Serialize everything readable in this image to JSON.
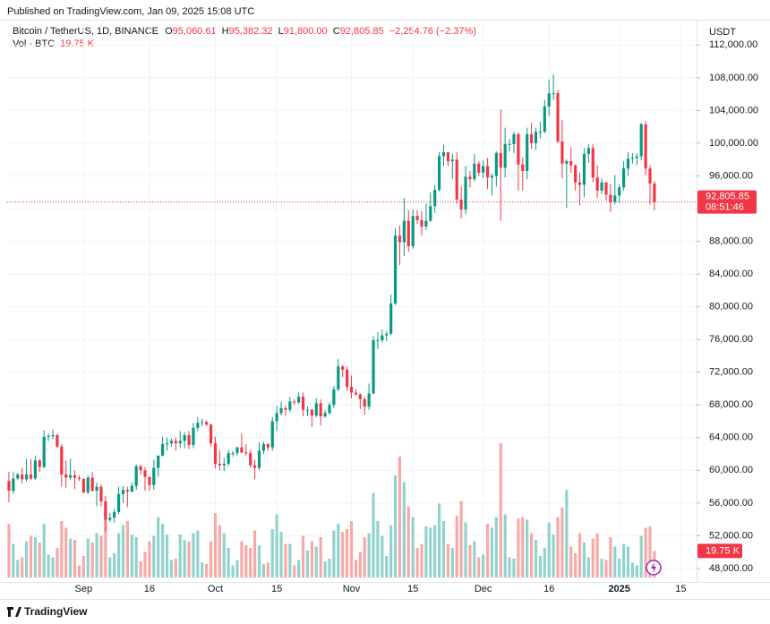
{
  "published": "Published on TradingView.com, Jan 09, 2025 15:08 UTC",
  "brand": "TradingView",
  "chart_data": {
    "type": "candlestick",
    "symbol": "Bitcoin / TetherUS, 1D, BINANCE",
    "ohlc_legend": [
      [
        "O",
        "95,060.61"
      ],
      [
        "H",
        "95,382.32"
      ],
      [
        "L",
        "91,800.00"
      ],
      [
        "C",
        "92,805.85"
      ]
    ],
    "change": "−2,254.76 (−2.37%)",
    "volume_title": "Vol · BTC",
    "volume_label": "19.75 K",
    "currency": "USDT",
    "last_price_label": "92,805.85",
    "countdown": "08:51:46",
    "up_color": "#089981",
    "down_color": "#f23645",
    "up_volume_color": "#92d2cc",
    "down_volume_color": "#f7a9a7",
    "grid": true,
    "xlim": [
      -0.4,
      156.6
    ],
    "xticks": [
      {
        "value": 17,
        "label": "Sep"
      },
      {
        "value": 32,
        "label": "16"
      },
      {
        "value": 47,
        "label": "Oct"
      },
      {
        "value": 61,
        "label": "15"
      },
      {
        "value": 78,
        "label": "Nov"
      },
      {
        "value": 92,
        "label": "15"
      },
      {
        "value": 108,
        "label": "Dec"
      },
      {
        "value": 123,
        "label": "16"
      },
      {
        "value": 139,
        "label": "2025"
      },
      {
        "value": 153,
        "label": "15"
      }
    ],
    "ylim": [
      46900,
      115100
    ],
    "yticks": [
      {
        "value": 48000,
        "label": "48,000.00"
      },
      {
        "value": 52000,
        "label": "52,000.00"
      },
      {
        "value": 56000,
        "label": "56,000.00"
      },
      {
        "value": 60000,
        "label": "60,000.00"
      },
      {
        "value": 64000,
        "label": "64,000.00"
      },
      {
        "value": 68000,
        "label": "68,000.00"
      },
      {
        "value": 72000,
        "label": "72,000.00"
      },
      {
        "value": 76000,
        "label": "76,000.00"
      },
      {
        "value": 80000,
        "label": "80,000.00"
      },
      {
        "value": 84000,
        "label": "84,000.00"
      },
      {
        "value": 88000,
        "label": "88,000.00"
      },
      {
        "value": 92000,
        "label": "92,000.00"
      },
      {
        "value": 96000,
        "label": "96,000.00"
      },
      {
        "value": 100000,
        "label": "100,000.00"
      },
      {
        "value": 104000,
        "label": "104,000.00"
      },
      {
        "value": 108000,
        "label": "108,000.00"
      },
      {
        "value": 112000,
        "label": "112,000.00"
      }
    ],
    "x": [
      0,
      1,
      2,
      3,
      4,
      5,
      6,
      7,
      8,
      9,
      10,
      11,
      12,
      13,
      14,
      15,
      16,
      17,
      18,
      19,
      20,
      21,
      22,
      23,
      24,
      25,
      26,
      27,
      28,
      29,
      30,
      31,
      32,
      33,
      34,
      35,
      36,
      37,
      38,
      39,
      40,
      41,
      42,
      43,
      44,
      45,
      46,
      47,
      48,
      49,
      50,
      51,
      52,
      53,
      54,
      55,
      56,
      57,
      58,
      59,
      60,
      61,
      62,
      63,
      64,
      65,
      66,
      67,
      68,
      69,
      70,
      71,
      72,
      73,
      74,
      75,
      76,
      77,
      78,
      79,
      80,
      81,
      82,
      83,
      84,
      85,
      86,
      87,
      88,
      89,
      90,
      91,
      92,
      93,
      94,
      95,
      96,
      97,
      98,
      99,
      100,
      101,
      102,
      103,
      104,
      105,
      106,
      107,
      108,
      109,
      110,
      111,
      112,
      113,
      114,
      115,
      116,
      117,
      118,
      119,
      120,
      121,
      122,
      123,
      124,
      125,
      126,
      127,
      128,
      129,
      130,
      131,
      132,
      133,
      134,
      135,
      136,
      137,
      138,
      139,
      140,
      141,
      142,
      143,
      144,
      145,
      146,
      147
    ],
    "candles": [
      [
        58700,
        59800,
        56100,
        57500,
        40000
      ],
      [
        57500,
        59800,
        57100,
        59000,
        25000
      ],
      [
        59000,
        59700,
        58800,
        59500,
        13000
      ],
      [
        59500,
        60300,
        58400,
        58900,
        15000
      ],
      [
        58900,
        61400,
        58600,
        59500,
        27000
      ],
      [
        59500,
        61400,
        58800,
        59000,
        31000
      ],
      [
        59000,
        61800,
        58800,
        61200,
        30000
      ],
      [
        61200,
        61400,
        59800,
        60400,
        26000
      ],
      [
        60400,
        64900,
        60300,
        64100,
        40000
      ],
      [
        64100,
        64500,
        63600,
        64200,
        17000
      ],
      [
        64200,
        65000,
        63800,
        64300,
        15000
      ],
      [
        64300,
        64500,
        62700,
        62900,
        22000
      ],
      [
        62900,
        63200,
        58000,
        59500,
        42000
      ],
      [
        59500,
        61200,
        57900,
        59100,
        37000
      ],
      [
        59100,
        61400,
        58800,
        59400,
        29000
      ],
      [
        59400,
        60000,
        57700,
        59100,
        28000
      ],
      [
        59100,
        59400,
        58700,
        58970,
        9000
      ],
      [
        58970,
        59000,
        57200,
        57300,
        16000
      ],
      [
        57300,
        59400,
        57100,
        59100,
        29000
      ],
      [
        59100,
        59800,
        57400,
        57500,
        26000
      ],
      [
        57500,
        58500,
        55600,
        58000,
        33000
      ],
      [
        58000,
        58300,
        55600,
        56200,
        31000
      ],
      [
        56200,
        56900,
        52500,
        53950,
        49000
      ],
      [
        53950,
        54800,
        53700,
        54200,
        15000
      ],
      [
        54200,
        55300,
        53600,
        54900,
        18000
      ],
      [
        54900,
        58000,
        54600,
        57100,
        33000
      ],
      [
        57100,
        58100,
        56000,
        57600,
        39000
      ],
      [
        57600,
        58000,
        55500,
        57400,
        42000
      ],
      [
        57400,
        58500,
        57300,
        58100,
        32000
      ],
      [
        58100,
        60700,
        57600,
        60500,
        30000
      ],
      [
        60500,
        60700,
        59500,
        60000,
        12000
      ],
      [
        60000,
        60400,
        57500,
        59200,
        19000
      ],
      [
        59200,
        59200,
        57500,
        58200,
        27000
      ],
      [
        58200,
        61300,
        57600,
        60300,
        31000
      ],
      [
        60300,
        61800,
        59200,
        61800,
        45000
      ],
      [
        61800,
        64100,
        61700,
        63200,
        40000
      ],
      [
        63200,
        64000,
        62400,
        63300,
        32000
      ],
      [
        63300,
        63900,
        62900,
        63600,
        13000
      ],
      [
        63600,
        64000,
        62400,
        63300,
        14000
      ],
      [
        63300,
        64800,
        62700,
        63600,
        32000
      ],
      [
        63600,
        64700,
        62700,
        64300,
        28000
      ],
      [
        64300,
        64800,
        62600,
        63100,
        27000
      ],
      [
        63100,
        65800,
        62700,
        65200,
        33000
      ],
      [
        65200,
        66500,
        64800,
        65800,
        35000
      ],
      [
        65800,
        66300,
        65400,
        65900,
        11000
      ],
      [
        65900,
        66100,
        65400,
        65600,
        10000
      ],
      [
        65600,
        65700,
        62900,
        63300,
        27000
      ],
      [
        63300,
        64100,
        60200,
        60800,
        48000
      ],
      [
        60800,
        62400,
        60000,
        60600,
        39000
      ],
      [
        60600,
        61500,
        59900,
        60800,
        33000
      ],
      [
        60800,
        62500,
        60500,
        62100,
        22000
      ],
      [
        62100,
        62400,
        61700,
        62100,
        9000
      ],
      [
        62100,
        62900,
        61800,
        62800,
        13000
      ],
      [
        62800,
        64500,
        62100,
        62200,
        27000
      ],
      [
        62200,
        63200,
        61800,
        62100,
        24000
      ],
      [
        62100,
        62500,
        60300,
        60600,
        22000
      ],
      [
        60600,
        61300,
        58900,
        60300,
        35000
      ],
      [
        60300,
        63400,
        60000,
        62400,
        24000
      ],
      [
        62400,
        63500,
        62000,
        63200,
        10000
      ],
      [
        63200,
        63300,
        62400,
        62800,
        11000
      ],
      [
        62800,
        66500,
        62400,
        66000,
        36000
      ],
      [
        66000,
        67900,
        64800,
        67000,
        47000
      ],
      [
        67000,
        68400,
        66700,
        67600,
        34000
      ],
      [
        67600,
        67900,
        66700,
        67400,
        25000
      ],
      [
        67400,
        69000,
        67100,
        68400,
        25000
      ],
      [
        68400,
        68700,
        68000,
        68300,
        9000
      ],
      [
        68300,
        69500,
        68100,
        69000,
        13000
      ],
      [
        69000,
        69500,
        66600,
        67400,
        31000
      ],
      [
        67400,
        67800,
        66600,
        67400,
        20000
      ],
      [
        67400,
        67500,
        65300,
        66700,
        27000
      ],
      [
        66700,
        68800,
        66500,
        68200,
        23000
      ],
      [
        68200,
        68700,
        65500,
        66600,
        30000
      ],
      [
        66600,
        67400,
        66400,
        67000,
        12000
      ],
      [
        67000,
        68300,
        66800,
        68000,
        14000
      ],
      [
        68000,
        70300,
        67600,
        69900,
        35000
      ],
      [
        69900,
        73600,
        69700,
        72700,
        40000
      ],
      [
        72700,
        72900,
        71400,
        72300,
        34000
      ],
      [
        72300,
        72700,
        69700,
        70200,
        36000
      ],
      [
        70200,
        71600,
        68800,
        69500,
        42000
      ],
      [
        69500,
        69900,
        69100,
        69300,
        13000
      ],
      [
        69300,
        69400,
        67500,
        68700,
        19000
      ],
      [
        68700,
        69000,
        66800,
        67800,
        30000
      ],
      [
        67800,
        70600,
        67400,
        69400,
        33000
      ],
      [
        69400,
        76400,
        69300,
        75900,
        63000
      ],
      [
        75900,
        76900,
        74800,
        75900,
        42000
      ],
      [
        75900,
        77200,
        75600,
        76500,
        31000
      ],
      [
        76500,
        77000,
        75800,
        76700,
        16000
      ],
      [
        76700,
        81500,
        76500,
        80400,
        39000
      ],
      [
        80400,
        89600,
        80200,
        88700,
        76000
      ],
      [
        88700,
        89900,
        85100,
        87900,
        90000
      ],
      [
        87900,
        93300,
        86200,
        90500,
        71000
      ],
      [
        90500,
        91800,
        86700,
        87400,
        53000
      ],
      [
        87400,
        91900,
        87100,
        91100,
        45000
      ],
      [
        91100,
        91800,
        90100,
        90600,
        22000
      ],
      [
        90600,
        91700,
        88700,
        89800,
        25000
      ],
      [
        89800,
        92600,
        89400,
        90500,
        38000
      ],
      [
        90500,
        94000,
        90400,
        92300,
        37000
      ],
      [
        92300,
        94900,
        91500,
        94300,
        39000
      ],
      [
        94300,
        98900,
        94100,
        98400,
        55000
      ],
      [
        98400,
        99800,
        97200,
        98900,
        42000
      ],
      [
        98900,
        98900,
        97200,
        97800,
        25000
      ],
      [
        97800,
        98700,
        95600,
        98000,
        22000
      ],
      [
        98000,
        98900,
        92600,
        93100,
        46000
      ],
      [
        93100,
        94700,
        90800,
        91900,
        57000
      ],
      [
        91900,
        97200,
        91300,
        95900,
        41000
      ],
      [
        95900,
        96600,
        94600,
        95600,
        24000
      ],
      [
        95600,
        98700,
        95300,
        97500,
        27000
      ],
      [
        97500,
        97800,
        96000,
        96400,
        15000
      ],
      [
        96400,
        97900,
        95700,
        97200,
        17000
      ],
      [
        97200,
        98200,
        94400,
        95800,
        40000
      ],
      [
        95800,
        96300,
        93600,
        96000,
        37000
      ],
      [
        96000,
        99000,
        94700,
        98800,
        45000
      ],
      [
        98800,
        104100,
        90500,
        97000,
        100000
      ],
      [
        97000,
        101900,
        95800,
        99900,
        47000
      ],
      [
        99900,
        100500,
        99000,
        99900,
        15000
      ],
      [
        99900,
        101400,
        98800,
        101100,
        14000
      ],
      [
        101100,
        101300,
        94200,
        97400,
        44000
      ],
      [
        97400,
        98300,
        94200,
        96600,
        45000
      ],
      [
        96600,
        101900,
        95600,
        101100,
        43000
      ],
      [
        101100,
        102500,
        99300,
        100000,
        33000
      ],
      [
        100000,
        101900,
        99200,
        101400,
        28000
      ],
      [
        101400,
        102600,
        100600,
        101400,
        16000
      ],
      [
        101400,
        105300,
        101200,
        104500,
        22000
      ],
      [
        104500,
        107800,
        103300,
        106100,
        41000
      ],
      [
        106100,
        108400,
        105300,
        106100,
        32000
      ],
      [
        106100,
        106500,
        100000,
        100200,
        45000
      ],
      [
        100200,
        102800,
        95700,
        97500,
        52000
      ],
      [
        97500,
        98000,
        92100,
        97800,
        65000
      ],
      [
        97800,
        99500,
        96400,
        97300,
        23000
      ],
      [
        97300,
        97400,
        94200,
        95200,
        18000
      ],
      [
        95200,
        96400,
        92400,
        94900,
        33000
      ],
      [
        94900,
        99400,
        93400,
        98700,
        26000
      ],
      [
        98700,
        99900,
        97600,
        99400,
        15000
      ],
      [
        99400,
        99900,
        95200,
        95800,
        29000
      ],
      [
        95800,
        97300,
        93300,
        94200,
        33000
      ],
      [
        94200,
        95700,
        93800,
        95200,
        14000
      ],
      [
        95200,
        95300,
        93000,
        93700,
        13000
      ],
      [
        93700,
        95000,
        91600,
        92800,
        30000
      ],
      [
        92800,
        96100,
        92500,
        93600,
        23000
      ],
      [
        93600,
        95000,
        92700,
        94600,
        14000
      ],
      [
        94600,
        97800,
        94200,
        96900,
        25000
      ],
      [
        96900,
        98900,
        96000,
        98100,
        23000
      ],
      [
        98100,
        98800,
        97500,
        98200,
        11000
      ],
      [
        98200,
        98800,
        97300,
        98400,
        9000
      ],
      [
        98400,
        102500,
        97900,
        102300,
        31000
      ],
      [
        102300,
        102700,
        96100,
        96900,
        37000
      ],
      [
        96900,
        97300,
        92500,
        95060.61,
        38000
      ],
      [
        95060.61,
        95382.32,
        91800,
        92805.85,
        19750
      ]
    ]
  }
}
